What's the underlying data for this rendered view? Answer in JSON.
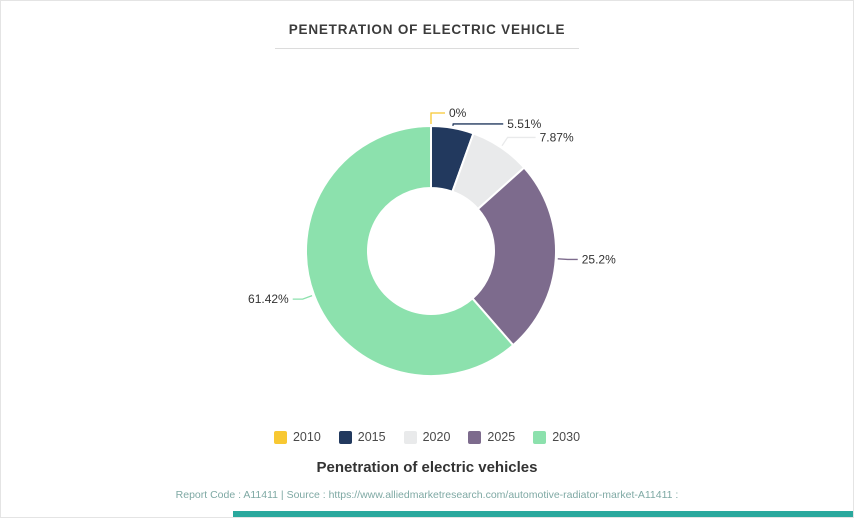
{
  "title": "PENETRATION OF ELECTRIC VEHICLE",
  "subtitle": "Penetration of electric vehicles",
  "footer": "Report Code : A11411  |  Source : https://www.alliedmarketresearch.com/automotive-radiator-market-A11411 :",
  "accent_bar_color": "#2aa89d",
  "chart_data": {
    "type": "pie",
    "donut": true,
    "title": "PENETRATION OF ELECTRIC VEHICLE",
    "categories": [
      "2010",
      "2015",
      "2020",
      "2025",
      "2030"
    ],
    "values": [
      0,
      5.51,
      7.87,
      25.2,
      61.42
    ],
    "labels": [
      "0%",
      "5.51%",
      "7.87%",
      "25.2%",
      "61.42%"
    ],
    "colors": [
      "#f8c832",
      "#22395e",
      "#e9eaeb",
      "#7d6b8d",
      "#8ce1ad"
    ],
    "legend_position": "bottom",
    "start_angle_deg": -90,
    "direction": "clockwise"
  }
}
